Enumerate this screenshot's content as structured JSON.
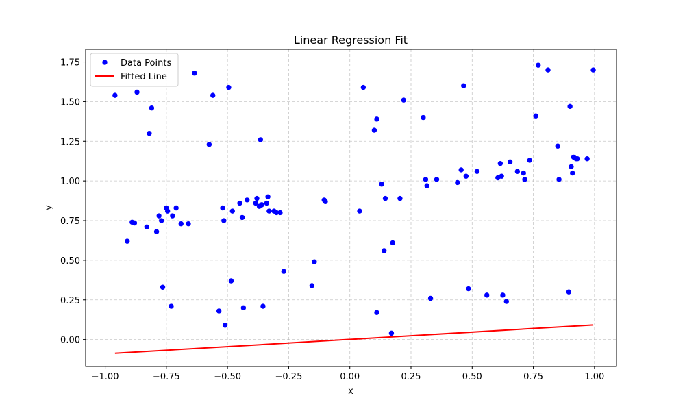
{
  "chart_data": {
    "type": "scatter",
    "title": "Linear Regression Fit",
    "xlabel": "x",
    "ylabel": "y",
    "xlim": [
      -1.08,
      1.09
    ],
    "ylim": [
      -0.17,
      1.83
    ],
    "xticks": [
      -1.0,
      -0.75,
      -0.5,
      -0.25,
      0.0,
      0.25,
      0.5,
      0.75,
      1.0
    ],
    "xtick_labels": [
      "−1.00",
      "−0.75",
      "−0.50",
      "−0.25",
      "0.00",
      "0.25",
      "0.50",
      "0.75",
      "1.00"
    ],
    "yticks": [
      0.0,
      0.25,
      0.5,
      0.75,
      1.0,
      1.25,
      1.5,
      1.75
    ],
    "ytick_labels": [
      "0.00",
      "0.25",
      "0.50",
      "0.75",
      "1.00",
      "1.25",
      "1.50",
      "1.75"
    ],
    "grid": true,
    "legend_position": "top-left",
    "series": [
      {
        "name": "Data Points",
        "kind": "scatter",
        "color": "#0000ff",
        "points": [
          [
            -0.96,
            1.54
          ],
          [
            -0.91,
            0.62
          ],
          [
            -0.89,
            0.74
          ],
          [
            -0.88,
            0.735
          ],
          [
            -0.87,
            1.56
          ],
          [
            -0.83,
            0.71
          ],
          [
            -0.82,
            1.3
          ],
          [
            -0.81,
            1.46
          ],
          [
            -0.79,
            0.68
          ],
          [
            -0.78,
            0.78
          ],
          [
            -0.77,
            0.75
          ],
          [
            -0.765,
            0.33
          ],
          [
            -0.75,
            0.83
          ],
          [
            -0.745,
            0.81
          ],
          [
            -0.73,
            0.21
          ],
          [
            -0.725,
            0.78
          ],
          [
            -0.71,
            0.83
          ],
          [
            -0.69,
            0.73
          ],
          [
            -0.66,
            0.73
          ],
          [
            -0.635,
            1.68
          ],
          [
            -0.575,
            1.23
          ],
          [
            -0.56,
            1.54
          ],
          [
            -0.535,
            0.18
          ],
          [
            -0.52,
            0.83
          ],
          [
            -0.515,
            0.75
          ],
          [
            -0.51,
            0.09
          ],
          [
            -0.495,
            1.59
          ],
          [
            -0.485,
            0.37
          ],
          [
            -0.48,
            0.81
          ],
          [
            -0.45,
            0.86
          ],
          [
            -0.44,
            0.77
          ],
          [
            -0.435,
            0.2
          ],
          [
            -0.42,
            0.88
          ],
          [
            -0.385,
            0.86
          ],
          [
            -0.38,
            0.89
          ],
          [
            -0.37,
            0.84
          ],
          [
            -0.365,
            1.26
          ],
          [
            -0.36,
            0.85
          ],
          [
            -0.355,
            0.21
          ],
          [
            -0.34,
            0.86
          ],
          [
            -0.335,
            0.9
          ],
          [
            -0.33,
            0.81
          ],
          [
            -0.31,
            0.81
          ],
          [
            -0.3,
            0.8
          ],
          [
            -0.285,
            0.8
          ],
          [
            -0.27,
            0.43
          ],
          [
            -0.155,
            0.34
          ],
          [
            -0.145,
            0.49
          ],
          [
            -0.105,
            0.88
          ],
          [
            -0.1,
            0.87
          ],
          [
            0.04,
            0.81
          ],
          [
            0.055,
            1.59
          ],
          [
            0.1,
            1.32
          ],
          [
            0.11,
            1.39
          ],
          [
            0.11,
            0.17
          ],
          [
            0.13,
            0.98
          ],
          [
            0.14,
            0.56
          ],
          [
            0.145,
            0.89
          ],
          [
            0.17,
            0.04
          ],
          [
            0.175,
            0.61
          ],
          [
            0.205,
            0.89
          ],
          [
            0.22,
            1.51
          ],
          [
            0.3,
            1.4
          ],
          [
            0.31,
            1.01
          ],
          [
            0.315,
            0.97
          ],
          [
            0.33,
            0.26
          ],
          [
            0.355,
            1.01
          ],
          [
            0.44,
            0.99
          ],
          [
            0.455,
            1.07
          ],
          [
            0.465,
            1.6
          ],
          [
            0.475,
            1.03
          ],
          [
            0.485,
            0.32
          ],
          [
            0.52,
            1.06
          ],
          [
            0.56,
            0.28
          ],
          [
            0.605,
            1.02
          ],
          [
            0.615,
            1.11
          ],
          [
            0.62,
            1.03
          ],
          [
            0.625,
            0.28
          ],
          [
            0.64,
            0.24
          ],
          [
            0.655,
            1.12
          ],
          [
            0.685,
            1.06
          ],
          [
            0.71,
            1.05
          ],
          [
            0.715,
            1.01
          ],
          [
            0.735,
            1.13
          ],
          [
            0.76,
            1.41
          ],
          [
            0.77,
            1.73
          ],
          [
            0.81,
            1.7
          ],
          [
            0.85,
            1.22
          ],
          [
            0.855,
            1.01
          ],
          [
            0.895,
            0.3
          ],
          [
            0.9,
            1.47
          ],
          [
            0.905,
            1.09
          ],
          [
            0.91,
            1.05
          ],
          [
            0.915,
            1.15
          ],
          [
            0.925,
            1.14
          ],
          [
            0.93,
            1.14
          ],
          [
            0.97,
            1.14
          ],
          [
            0.995,
            1.7
          ]
        ]
      },
      {
        "name": "Fitted Line",
        "kind": "line",
        "color": "#ff0000",
        "points": [
          [
            -0.96,
            -0.087
          ],
          [
            0.995,
            0.092
          ]
        ]
      }
    ]
  }
}
